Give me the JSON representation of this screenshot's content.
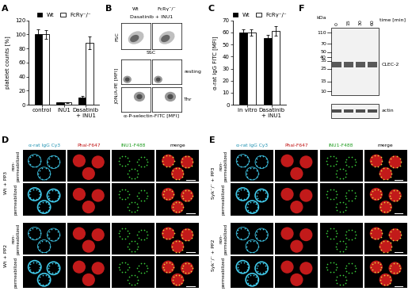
{
  "chart_data": [
    {
      "type": "bar",
      "y_label": "platelet counts [%]",
      "categories": [
        "control",
        "INU1",
        "Dasatinib\n+ INU1"
      ],
      "series": [
        {
          "name": "Wt",
          "color": "#000000",
          "values": [
            100,
            3,
            10
          ],
          "errors": [
            7,
            1,
            3
          ]
        },
        {
          "name": "FcRγ⁻/⁻",
          "color": "#ffffff",
          "values": [
            100,
            3,
            88
          ],
          "errors": [
            6,
            1,
            9
          ]
        }
      ],
      "ylim": [
        0,
        120
      ],
      "yticks": [
        0,
        20,
        40,
        60,
        80,
        100,
        120
      ],
      "legend": "top"
    },
    {
      "type": "bar",
      "y_label": "α-rat IgG FITC [MFI]",
      "categories": [
        "in vitro",
        "Dasatinib\n+ INU1"
      ],
      "series": [
        {
          "name": "Wt",
          "color": "#000000",
          "values": [
            60,
            55
          ],
          "errors": [
            2.5,
            3
          ]
        },
        {
          "name": "FcRγ⁻/⁻",
          "color": "#ffffff",
          "values": [
            60,
            61
          ],
          "errors": [
            2.5,
            4
          ]
        }
      ],
      "ylim": [
        0,
        70
      ],
      "yticks": [
        0,
        10,
        20,
        30,
        40,
        50,
        60,
        70
      ],
      "legend": "top"
    }
  ],
  "panel_labels": [
    "A",
    "B",
    "C",
    "D",
    "E",
    "F"
  ],
  "flow_cytometry": {
    "columns": [
      "Wt",
      "FcRγ⁻/⁻"
    ],
    "treatment": "Dasatinib + INU1",
    "scatter": {
      "x_label": "SSC",
      "y_label": "FSC"
    },
    "activation": {
      "x_label": "α-P-selectin-FITC [MFI]",
      "y_label": "JON/A-PE [MFI]",
      "rows": [
        "resting",
        "Thr"
      ]
    }
  },
  "micrographs": [
    {
      "channels": [
        "α-rat IgG Cy3",
        "Phal-F647",
        "INU1-F488",
        "merge"
      ],
      "groups": [
        {
          "label": "Wt + PP3",
          "rows": [
            "non-\npermeabilized",
            "permeabilized"
          ]
        },
        {
          "label": "Wt + PP2",
          "rows": [
            "non-\npermeabilized",
            "permeabilized"
          ]
        }
      ]
    },
    {
      "channels": [
        "α-rat IgG Cy3",
        "Phal-F647",
        "INU1-F488",
        "merge"
      ],
      "groups": [
        {
          "label": "Syk⁻/⁻ + PP3",
          "rows": [
            "non-\npermeabilized",
            "permeabilized"
          ]
        },
        {
          "label": "Syk⁻/⁻ + PP2",
          "rows": [
            "non-\npermeabilized",
            "permeabilized"
          ]
        }
      ]
    }
  ],
  "western_blot": {
    "unit_label": "kDa",
    "markers": [
      110,
      70,
      50,
      40,
      35,
      25,
      15,
      10
    ],
    "time_label": "time [min]",
    "times": [
      0,
      15,
      30,
      60
    ],
    "bands": [
      {
        "label": "CLEC-2",
        "kda": [
          31,
          28
        ]
      }
    ],
    "loading_label": "actin"
  }
}
